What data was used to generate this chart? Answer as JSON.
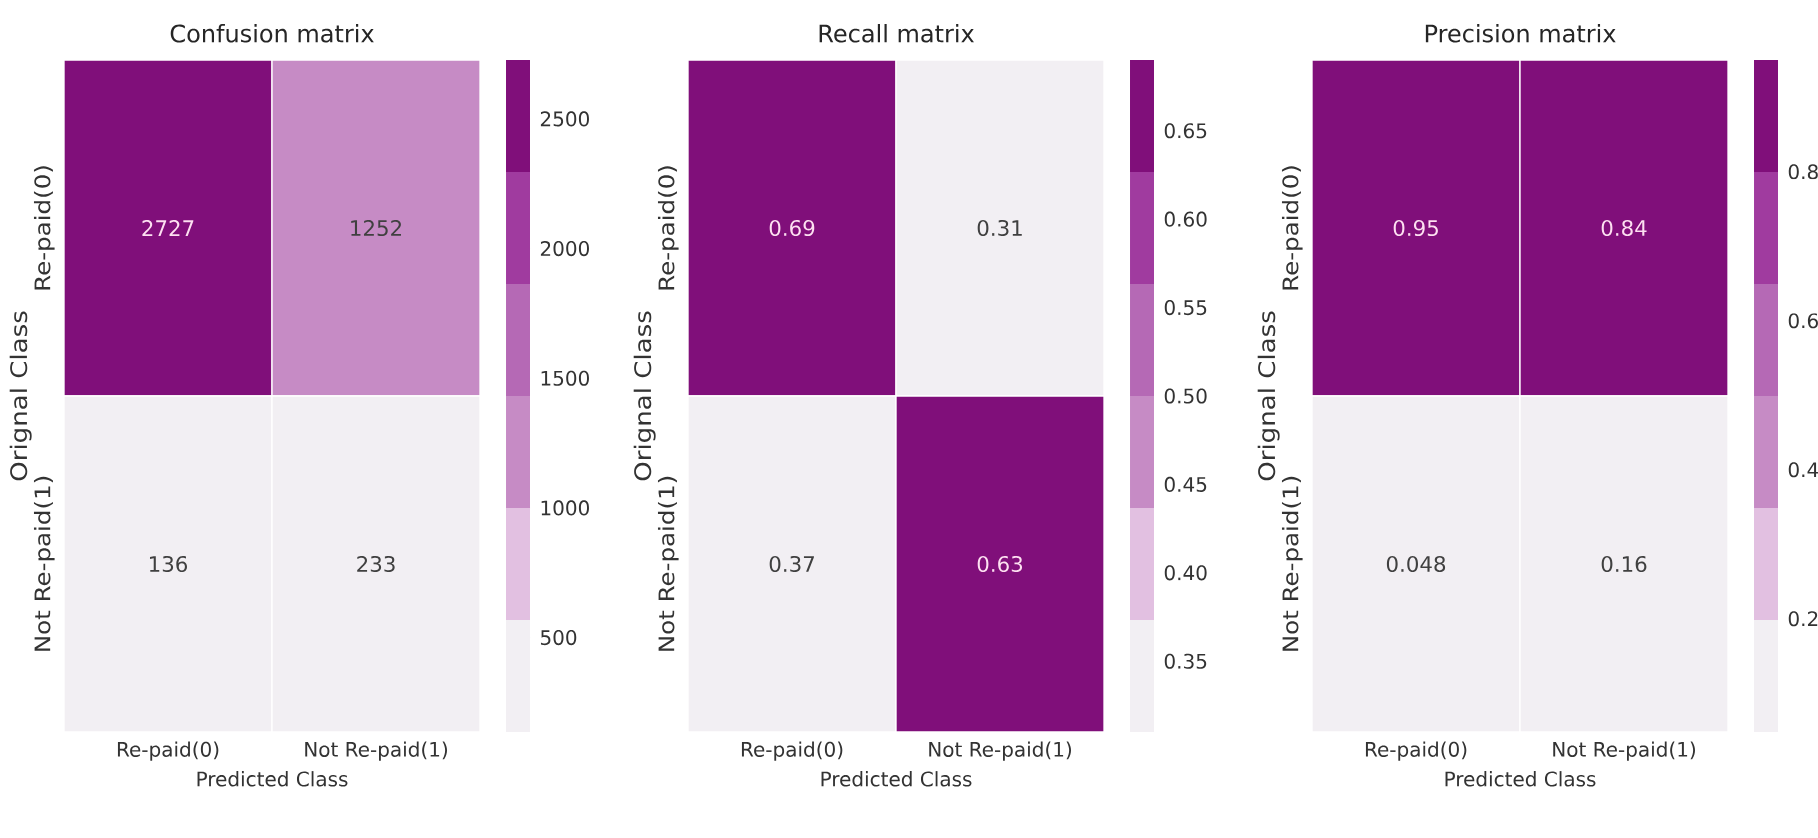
{
  "chart_data": [
    {
      "type": "heatmap",
      "title": "Confusion matrix",
      "xlabel": "Predicted Class",
      "ylabel": "Orignal Class",
      "categories": [
        "Re-paid(0)",
        "Not Re-paid(1)"
      ],
      "y_categories": [
        "Re-paid(0)",
        "Not Re-paid(1)"
      ],
      "cells": [
        [
          2727,
          1252
        ],
        [
          136,
          233
        ]
      ],
      "data_labels": true,
      "clim": [
        136,
        2727
      ],
      "cticks": [
        500,
        1000,
        1500,
        2000,
        2500
      ],
      "colors": [
        "#f2eff3",
        "#e2c0e1",
        "#c68bc5",
        "#b569b5",
        "#a03b9f",
        "#800f7a"
      ]
    },
    {
      "type": "heatmap",
      "title": "Recall matrix",
      "xlabel": "Predicted Class",
      "ylabel": "Orignal Class",
      "categories": [
        "Re-paid(0)",
        "Not Re-paid(1)"
      ],
      "y_categories": [
        "Re-paid(0)",
        "Not Re-paid(1)"
      ],
      "cells": [
        [
          0.69,
          0.31
        ],
        [
          0.37,
          0.63
        ]
      ],
      "data_labels": true,
      "clim": [
        0.31,
        0.69
      ],
      "cticks": [
        0.35,
        {
          "value": 0.4,
          "label": "0.40"
        },
        0.45,
        {
          "value": 0.5,
          "label": "0.50"
        },
        0.55,
        {
          "value": 0.6,
          "label": "0.60"
        },
        0.65
      ],
      "colors": [
        "#f2eff3",
        "#e2c0e1",
        "#c68bc5",
        "#b569b5",
        "#a03b9f",
        "#800f7a"
      ]
    },
    {
      "type": "heatmap",
      "title": "Precision matrix",
      "xlabel": "Predicted Class",
      "ylabel": "Orignal Class",
      "categories": [
        "Re-paid(0)",
        "Not Re-paid(1)"
      ],
      "y_categories": [
        "Re-paid(0)",
        "Not Re-paid(1)"
      ],
      "cells": [
        [
          0.95,
          0.84
        ],
        [
          0.048,
          0.16
        ]
      ],
      "data_labels": true,
      "clim": [
        0.048,
        0.95
      ],
      "cticks": [
        0.2,
        0.4,
        0.6,
        0.8
      ],
      "colors": [
        "#f2eff3",
        "#e2c0e1",
        "#c68bc5",
        "#b569b5",
        "#a03b9f",
        "#800f7a"
      ]
    }
  ]
}
